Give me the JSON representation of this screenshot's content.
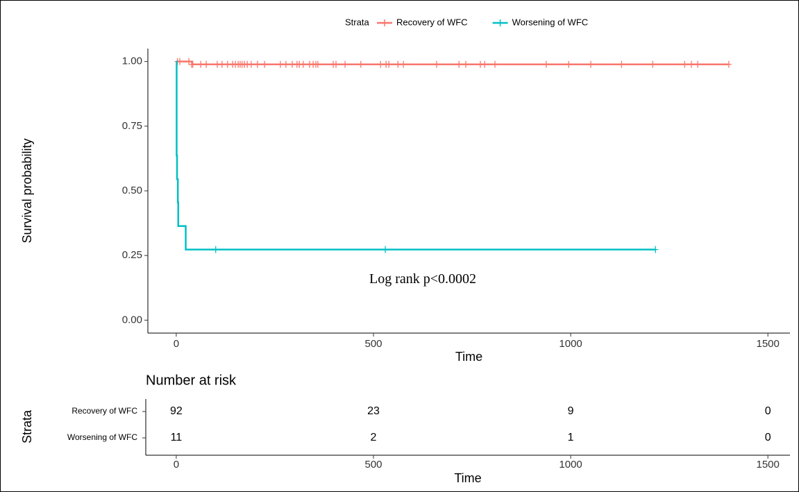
{
  "chart_data": [
    {
      "type": "survival",
      "ylabel": "Survival probability",
      "xlabel": "Time",
      "legend_title": "Strata",
      "legend": "top",
      "annotation": "Log rank p<0.0002",
      "xlim": [
        -72,
        1556
      ],
      "xticks": [
        0,
        500,
        1000,
        1500
      ],
      "ylim": [
        -0.05,
        1.05
      ],
      "yticks": [
        {
          "value": 0,
          "label": "0.00"
        },
        0.25,
        {
          "value": 0.5,
          "label": "0.50"
        },
        0.75,
        {
          "value": 1,
          "label": "1.00"
        }
      ],
      "grid": false,
      "series": [
        {
          "name": "Recovery of WFC",
          "color": "#F8766D",
          "x": [
            0,
            40,
            1401
          ],
          "values": [
            1,
            0.989,
            0.989
          ],
          "censor_x": [
            3,
            9,
            32,
            39,
            42,
            62,
            76,
            104,
            116,
            130,
            143,
            150,
            157,
            162,
            167,
            173,
            180,
            190,
            206,
            224,
            264,
            278,
            294,
            306,
            312,
            322,
            338,
            347,
            354,
            359,
            398,
            405,
            428,
            468,
            518,
            532,
            539,
            562,
            576,
            660,
            717,
            734,
            771,
            782,
            808,
            938,
            995,
            1051,
            1129,
            1208,
            1289,
            1306,
            1322,
            1401
          ],
          "censor_values": [
            1,
            1,
            1,
            0.989,
            0.989,
            0.989,
            0.989,
            0.989,
            0.989,
            0.989,
            0.989,
            0.989,
            0.989,
            0.989,
            0.989,
            0.989,
            0.989,
            0.989,
            0.989,
            0.989,
            0.989,
            0.989,
            0.989,
            0.989,
            0.989,
            0.989,
            0.989,
            0.989,
            0.989,
            0.989,
            0.989,
            0.989,
            0.989,
            0.989,
            0.989,
            0.989,
            0.989,
            0.989,
            0.989,
            0.989,
            0.989,
            0.989,
            0.989,
            0.989,
            0.989,
            0.989,
            0.989,
            0.989,
            0.989,
            0.989,
            0.989,
            0.989,
            0.989,
            0.989
          ]
        },
        {
          "name": "Worsening of WFC",
          "color": "#00BFC4",
          "x": [
            0,
            1,
            2,
            4,
            5,
            24,
            1215
          ],
          "values": [
            1,
            0.636,
            0.545,
            0.455,
            0.364,
            0.273,
            0.273
          ],
          "censor_x": [
            100,
            530,
            1215
          ],
          "censor_values": [
            0.273,
            0.273,
            0.273
          ]
        }
      ]
    },
    {
      "type": "risk-table",
      "title": "Number at risk",
      "ylabel": "Strata",
      "xlabel": "Time",
      "xlim": [
        -72,
        1556
      ],
      "xticks": [
        0,
        500,
        1000,
        1500
      ],
      "x": [
        0,
        500,
        1000,
        1500
      ],
      "series": [
        {
          "name": "Recovery of WFC",
          "values": [
            92,
            23,
            9,
            0
          ]
        },
        {
          "name": "Worsening of WFC",
          "values": [
            11,
            2,
            1,
            0
          ]
        }
      ]
    }
  ]
}
